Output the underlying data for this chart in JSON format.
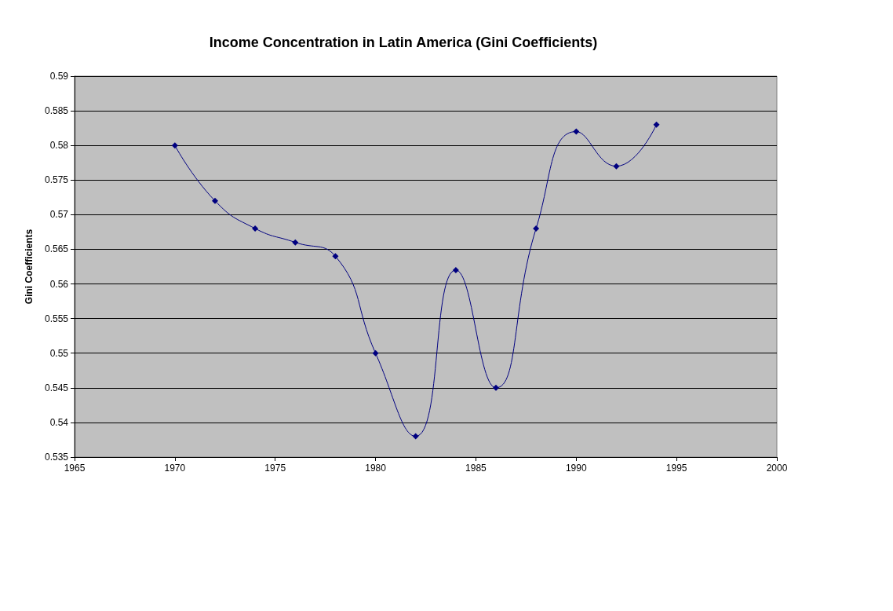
{
  "chart_data": {
    "type": "line",
    "title": "Income Concentration in Latin America (Gini Coefficients)",
    "ylabel": "Gini Coefficients",
    "x": [
      1970,
      1972,
      1974,
      1976,
      1978,
      1980,
      1982,
      1984,
      1986,
      1988,
      1990,
      1992,
      1994
    ],
    "values": [
      0.58,
      0.572,
      0.568,
      0.566,
      0.564,
      0.55,
      0.538,
      0.562,
      0.545,
      0.568,
      0.582,
      0.577,
      0.583
    ],
    "color": "#000080",
    "marker": "diamond",
    "line_style": "solid",
    "grid": "y",
    "xlim": [
      1965,
      2000
    ],
    "xticks": [
      1965,
      1970,
      1975,
      1980,
      1985,
      1990,
      1995,
      2000
    ],
    "ylim": [
      0.535,
      0.59
    ],
    "yticks": [
      0.535,
      0.54,
      0.545,
      0.55,
      0.555,
      0.56,
      0.565,
      0.57,
      0.575,
      0.58,
      0.585,
      0.59
    ]
  }
}
